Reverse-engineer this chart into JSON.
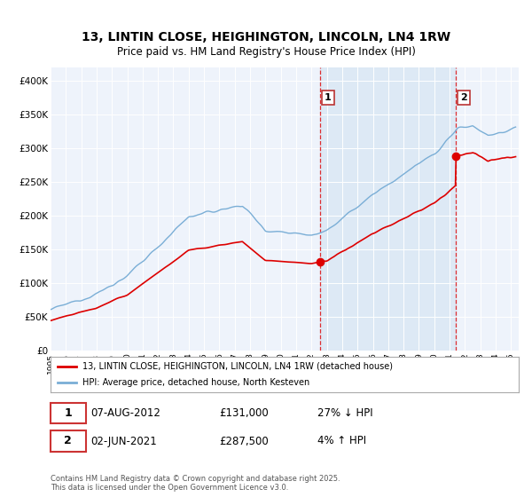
{
  "title": "13, LINTIN CLOSE, HEIGHINGTON, LINCOLN, LN4 1RW",
  "subtitle": "Price paid vs. HM Land Registry's House Price Index (HPI)",
  "ylabel_ticks": [
    "£0",
    "£50K",
    "£100K",
    "£150K",
    "£200K",
    "£250K",
    "£300K",
    "£350K",
    "£400K"
  ],
  "ytick_values": [
    0,
    50000,
    100000,
    150000,
    200000,
    250000,
    300000,
    350000,
    400000
  ],
  "ylim": [
    0,
    420000
  ],
  "xlim_start": 1995.0,
  "xlim_end": 2025.5,
  "red_color": "#dd0000",
  "blue_color": "#7aaed6",
  "shade_color": "#dce8f5",
  "transaction1_x": 2012.58,
  "transaction1_y": 131000,
  "transaction2_x": 2021.42,
  "transaction2_y": 287500,
  "legend_entry1": "13, LINTIN CLOSE, HEIGHINGTON, LINCOLN, LN4 1RW (detached house)",
  "legend_entry2": "HPI: Average price, detached house, North Kesteven",
  "note1_date": "07-AUG-2012",
  "note1_price": "£131,000",
  "note1_hpi": "27% ↓ HPI",
  "note2_date": "02-JUN-2021",
  "note2_price": "£287,500",
  "note2_hpi": "4% ↑ HPI",
  "footer": "Contains HM Land Registry data © Crown copyright and database right 2025.\nThis data is licensed under the Open Government Licence v3.0.",
  "background_color": "#ffffff",
  "plot_bg_color": "#eef3fb",
  "title_fontsize": 10,
  "subtitle_fontsize": 8.5
}
